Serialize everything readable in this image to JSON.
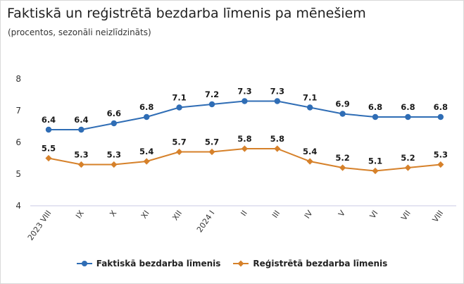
{
  "header": {
    "title": "Faktiskā un reģistrētā bezdarba līmenis pa mēnešiem",
    "subtitle": "(procentos, sezonāli neizlīdzināts)"
  },
  "chart_data": {
    "type": "line",
    "title": "Faktiskā un reģistrētā bezdarba līmenis pa mēnešiem",
    "subtitle": "(procentos, sezonāli neizlīdzināts)",
    "xlabel": "",
    "ylabel": "",
    "categories": [
      "2023 VIII",
      "IX",
      "X",
      "XI",
      "XII",
      "2024 I",
      "II",
      "III",
      "IV",
      "V",
      "VI",
      "VII",
      "VIII"
    ],
    "yticks": [
      "4",
      "5",
      "6",
      "7",
      "8"
    ],
    "ylim": [
      4,
      8
    ],
    "grid": false,
    "legend_position": "bottom",
    "series": [
      {
        "name": "Faktiskā bezdarba līmenis",
        "color": "#2f6db5",
        "values": [
          6.4,
          6.4,
          6.6,
          6.8,
          7.1,
          7.2,
          7.3,
          7.3,
          7.1,
          6.9,
          6.8,
          6.8,
          6.8
        ],
        "labels": [
          "6.4",
          "6.4",
          "6.6",
          "6.8",
          "7.1",
          "7.2",
          "7.3",
          "7.3",
          "7.1",
          "6.9",
          "6.8",
          "6.8",
          "6.8"
        ]
      },
      {
        "name": "Reģistrētā bezdarba līmenis",
        "color": "#d6812a",
        "values": [
          5.5,
          5.3,
          5.3,
          5.4,
          5.7,
          5.7,
          5.8,
          5.8,
          5.4,
          5.2,
          5.1,
          5.2,
          5.3
        ],
        "labels": [
          "5.5",
          "5.3",
          "5.3",
          "5.4",
          "5.7",
          "5.7",
          "5.8",
          "5.8",
          "5.4",
          "5.2",
          "5.1",
          "5.2",
          "5.3"
        ]
      }
    ]
  }
}
